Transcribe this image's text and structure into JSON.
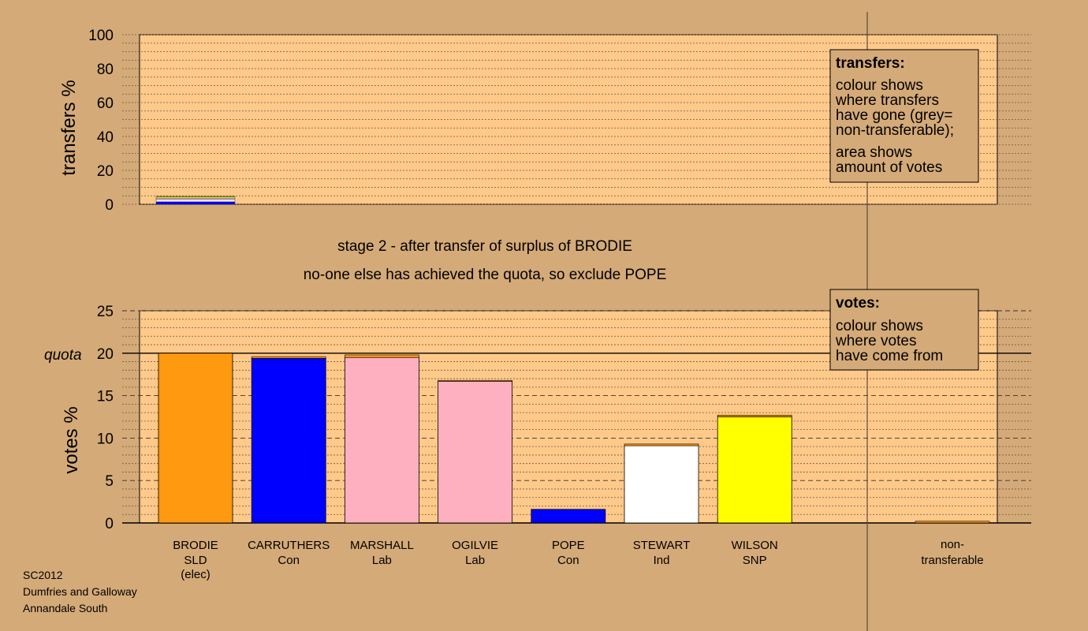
{
  "chart_data": [
    {
      "type": "bar",
      "ylabel": "transfers %",
      "ylim": [
        0,
        100
      ],
      "yticks": [
        0,
        20,
        40,
        60,
        80,
        100
      ],
      "grid": true,
      "transfer_bands": [
        {
          "color": "#0000ff",
          "value": 1.5
        },
        {
          "color": "#ffffff",
          "value": 1.3
        },
        {
          "color": "#ffb0c0",
          "value": 0.9
        },
        {
          "color": "#ffff00",
          "value": 0.6
        },
        {
          "color": "#99dd99",
          "value": 0.4
        }
      ],
      "legend": {
        "placement": "top-right",
        "title": "transfers:",
        "lines": [
          "colour shows",
          "where transfers",
          "have gone (grey=",
          "non-transferable);"
        ],
        "lines2": [
          "area shows",
          "amount of votes"
        ]
      }
    },
    {
      "type": "bar",
      "ylabel": "votes %",
      "ylim": [
        0,
        25
      ],
      "yticks": [
        0,
        5,
        10,
        15,
        20,
        25
      ],
      "quota": 20,
      "quota_label": "quota",
      "grid": true,
      "bars": [
        {
          "name": "BRODIE",
          "party": "SLD",
          "note": "(elec)",
          "total": 20.0,
          "base": 20.0,
          "base_color": "#ff9910",
          "transfer_color": "#ff9910"
        },
        {
          "name": "CARRUTHERS",
          "party": "Con",
          "note": "",
          "total": 19.6,
          "base": 19.4,
          "base_color": "#0000ff",
          "transfer_color": "#ff9910"
        },
        {
          "name": "MARSHALL",
          "party": "Lab",
          "note": "",
          "total": 19.8,
          "base": 19.5,
          "base_color": "#ffb0c0",
          "transfer_color": "#ff9910"
        },
        {
          "name": "OGILVIE",
          "party": "Lab",
          "note": "",
          "total": 16.8,
          "base": 16.7,
          "base_color": "#ffb0c0",
          "transfer_color": "#ff9910"
        },
        {
          "name": "POPE",
          "party": "Con",
          "note": "",
          "total": 1.6,
          "base": 1.6,
          "base_color": "#0000ff",
          "transfer_color": "#ff9910"
        },
        {
          "name": "STEWART",
          "party": "Ind",
          "note": "",
          "total": 9.3,
          "base": 9.1,
          "base_color": "#ffffff",
          "transfer_color": "#ff9910"
        },
        {
          "name": "WILSON",
          "party": "SNP",
          "note": "",
          "total": 12.7,
          "base": 12.5,
          "base_color": "#ffff00",
          "transfer_color": "#ff9910"
        }
      ],
      "non_transferable": {
        "label1": "non-",
        "label2": "transferable",
        "value": 0.2,
        "color": "#ff9910"
      },
      "legend": {
        "placement": "top-right",
        "title": "votes:",
        "lines": [
          "colour shows",
          "where votes",
          "have come from"
        ]
      }
    }
  ],
  "stage_line1": "stage 2 - after transfer of surplus of BRODIE",
  "stage_line2": "no-one else has achieved the quota, so exclude POPE",
  "footer": [
    "SC2012",
    "Dumfries and Galloway",
    "Annandale South"
  ],
  "colors": {
    "background": "#d4aa78",
    "plot_bg": "#ffc98a"
  }
}
